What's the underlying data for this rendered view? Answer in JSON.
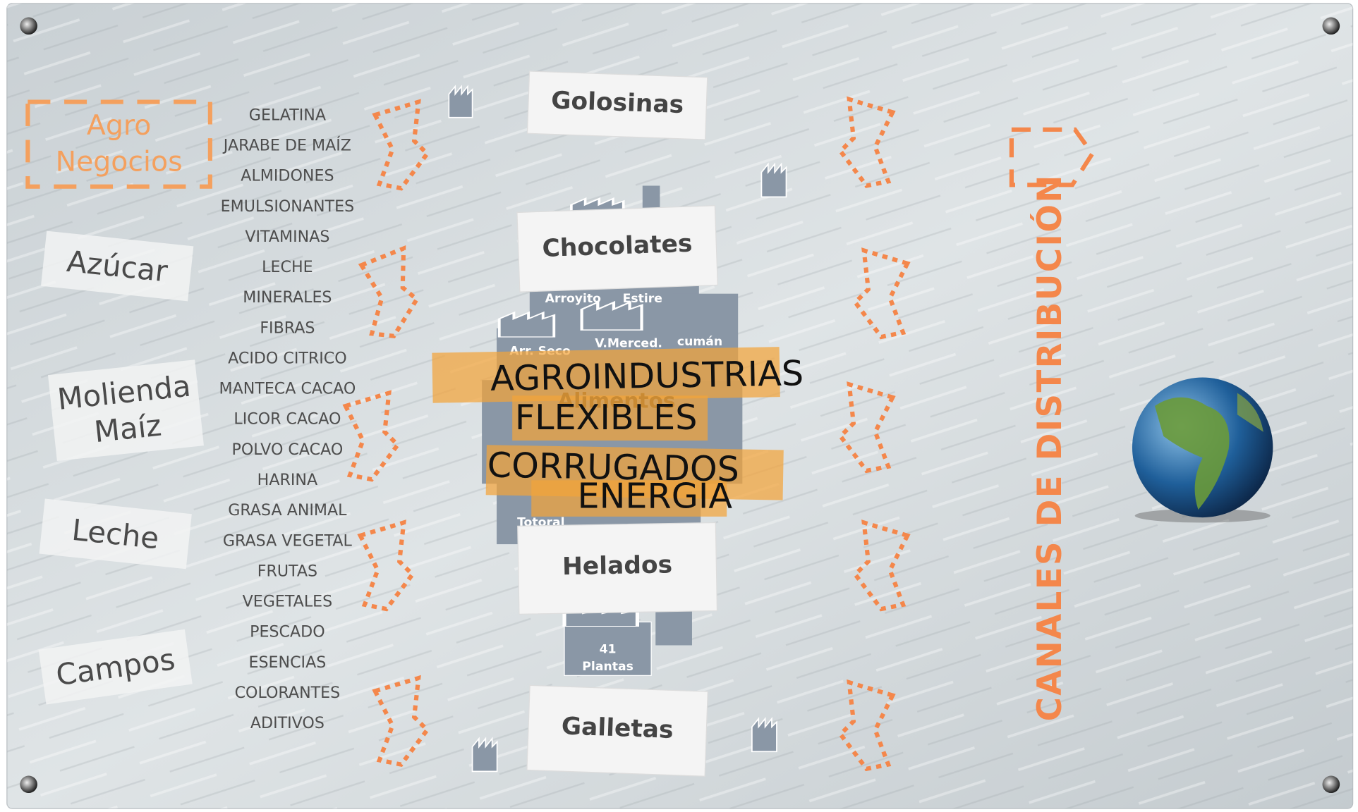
{
  "left_groups": [
    [
      "Agro",
      "Negocios"
    ],
    [
      "Azúcar"
    ],
    [
      "Molienda",
      "Maíz"
    ],
    [
      "Leche"
    ],
    [
      "Campos"
    ]
  ],
  "ingredients": [
    "GELATINA",
    "JARABE DE MAÍZ",
    "ALMIDONES",
    "EMULSIONANTES",
    "VITAMINAS",
    "LECHE",
    "MINERALES",
    "FIBRAS",
    "ACIDO CITRICO",
    "MANTECA CACAO",
    "LICOR CACAO",
    "POLVO CACAO",
    "HARINA",
    "GRASA ANIMAL",
    "GRASA VEGETAL",
    "FRUTAS",
    "VEGETALES",
    "PESCADO",
    "ESENCIAS",
    "COLORANTES",
    "ADITIVOS"
  ],
  "products": [
    "Golosinas",
    "Chocolates",
    "Helados",
    "Galletas"
  ],
  "plants": [
    "Arroyito",
    "Estire",
    "Arr. Seco",
    "V.Merced.",
    "cumán",
    "Totoral"
  ],
  "plants_total": [
    "41",
    "Plantas"
  ],
  "background_business": "Alimentos",
  "businesses": [
    "AGROINDUSTRIAS",
    "FLEXIBLES",
    "CORRUGADOS",
    "ENERGIA"
  ],
  "channels_title": "CANALES DE DISTRIBUCIÓN"
}
